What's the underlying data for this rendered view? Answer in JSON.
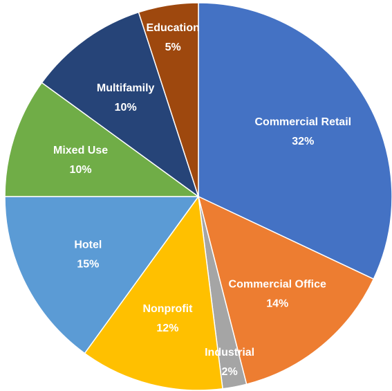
{
  "chart_data": {
    "type": "pie",
    "categories": [
      "Commercial Retail",
      "Commercial Office",
      "Industrial",
      "Nonprofit",
      "Hotel",
      "Mixed Use",
      "Multifamily",
      "Education"
    ],
    "values": [
      32,
      14,
      2,
      12,
      15,
      10,
      10,
      5
    ],
    "value_labels": [
      "32%",
      "14%",
      "2%",
      "12%",
      "15%",
      "10%",
      "10%",
      "5%"
    ],
    "colors": [
      "#4472c4",
      "#ed7d31",
      "#a5a5a5",
      "#ffc000",
      "#5b9bd5",
      "#70ad47",
      "#264478",
      "#9e480e"
    ]
  }
}
